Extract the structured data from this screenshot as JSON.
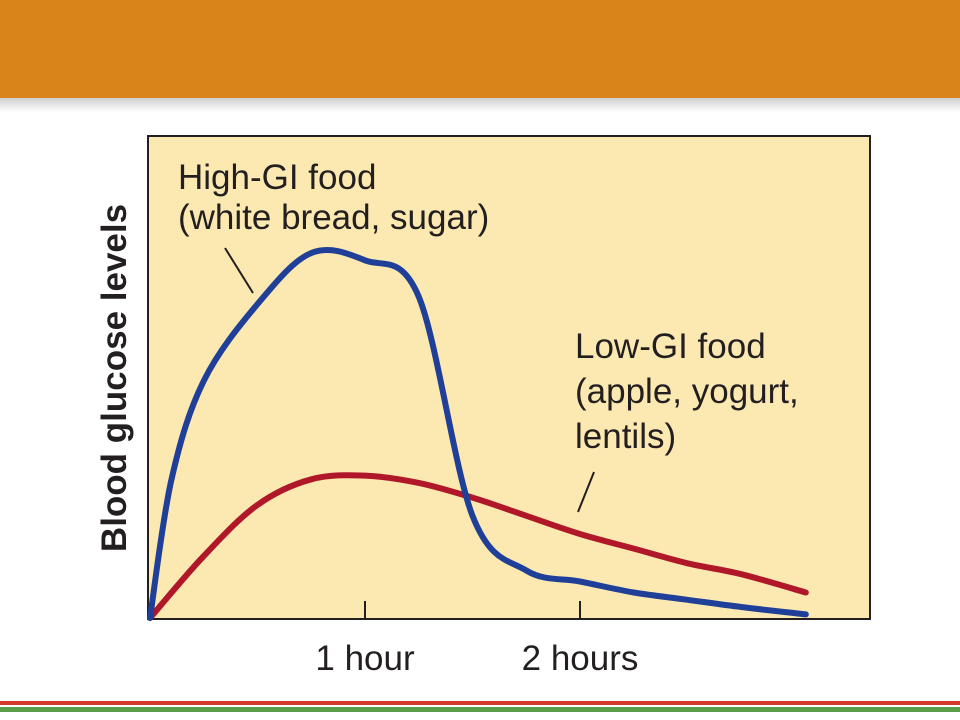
{
  "colors": {
    "banner": "#d9841a",
    "plot_background": "#fbe9b1",
    "high_gi_line": "#1f3f99",
    "low_gi_line": "#b0182a",
    "footer_red": "#d23a2a",
    "footer_green": "#5aa04a"
  },
  "chart_data": {
    "type": "line",
    "ylabel": "Blood glucose levels",
    "xlabel": "",
    "x_unit": "hours",
    "xlim": [
      0,
      3.1
    ],
    "ylim": [
      0,
      1
    ],
    "xticks": [
      {
        "value": 1,
        "label": "1 hour"
      },
      {
        "value": 2,
        "label": "2 hours"
      }
    ],
    "grid": false,
    "series": [
      {
        "name_lines": [
          "High-GI food",
          "(white bread, sugar)"
        ],
        "color": "#1f3f99",
        "x": [
          0,
          0.1,
          0.25,
          0.5,
          0.75,
          1.0,
          1.25,
          1.5,
          1.75,
          2.0,
          2.25,
          2.5,
          2.75,
          3.05
        ],
        "y": [
          0.0,
          0.38,
          0.65,
          0.86,
          1.0,
          0.98,
          0.88,
          0.28,
          0.13,
          0.1,
          0.07,
          0.05,
          0.03,
          0.01
        ]
      },
      {
        "name_lines": [
          "Low-GI food",
          "(apple, yogurt,",
          "lentils)"
        ],
        "color": "#b0182a",
        "x": [
          0,
          0.25,
          0.5,
          0.75,
          1.0,
          1.25,
          1.5,
          1.75,
          2.0,
          2.25,
          2.5,
          2.75,
          3.05
        ],
        "y": [
          0.0,
          0.17,
          0.31,
          0.38,
          0.39,
          0.37,
          0.33,
          0.28,
          0.23,
          0.19,
          0.15,
          0.12,
          0.07
        ]
      }
    ]
  }
}
